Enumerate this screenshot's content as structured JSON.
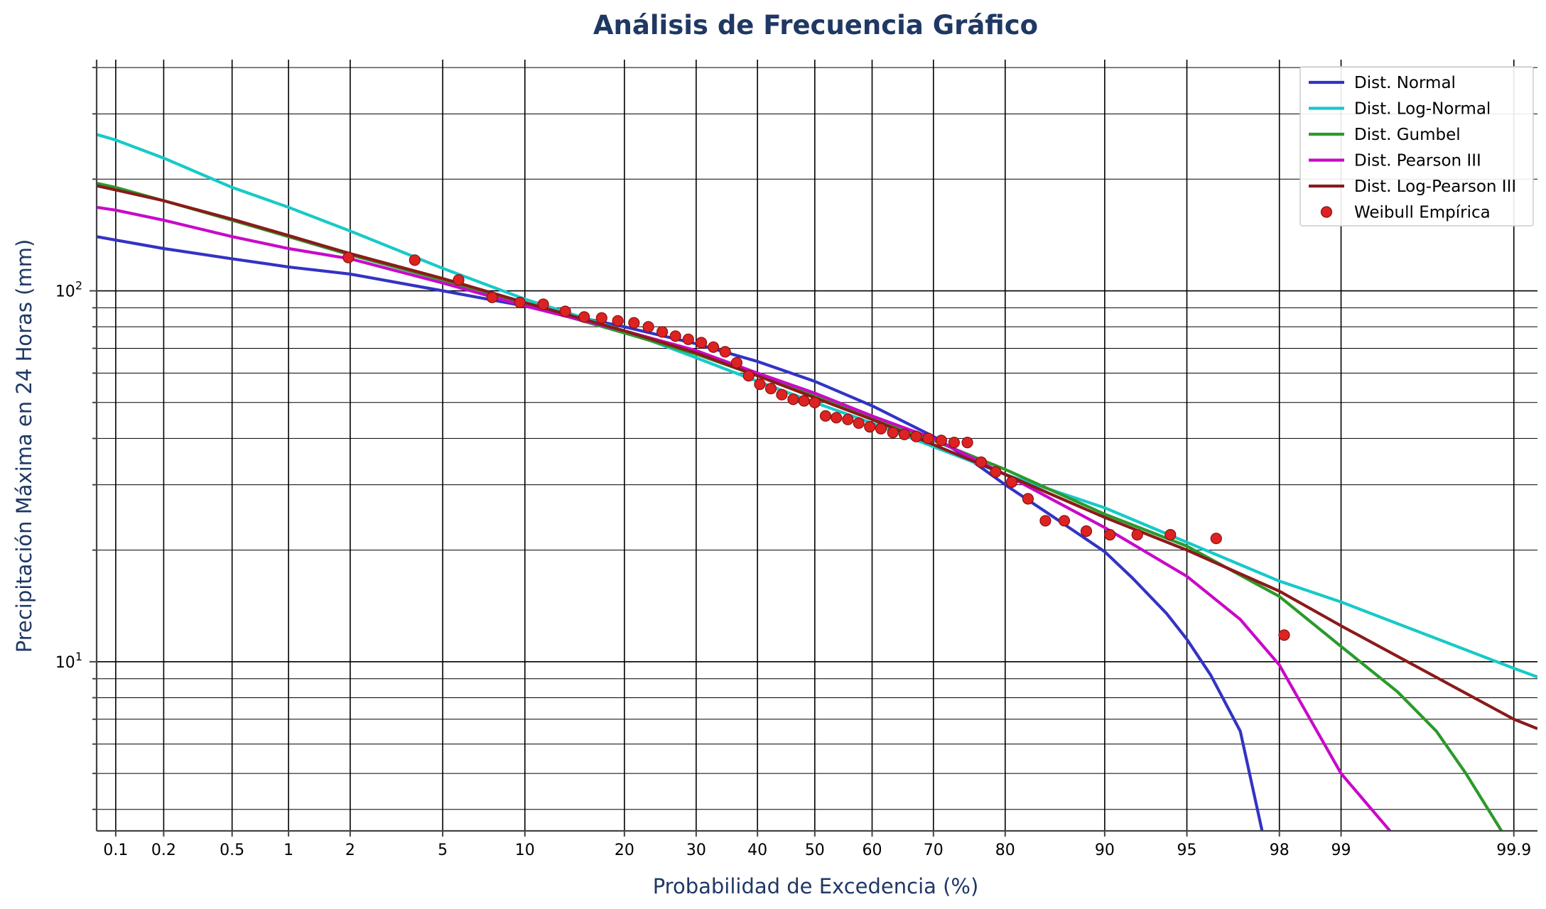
{
  "chart_data": {
    "type": "line",
    "title": "Análisis de Frecuencia Gráfico",
    "xlabel": "Probabilidad de Excedencia (%)",
    "ylabel": "Precipitación Máxima en 24 Horas (mm)",
    "x_scale": "normal-probability",
    "y_scale": "log",
    "ylim": [
      3.5,
      420
    ],
    "xlim_percent": [
      0.075,
      99.93
    ],
    "x_ticks": [
      0.1,
      0.2,
      0.5,
      1,
      2,
      5,
      10,
      20,
      30,
      40,
      50,
      60,
      70,
      80,
      90,
      95,
      98,
      99,
      99.9
    ],
    "x_tick_labels": [
      "0.1",
      "0.2",
      "0.5",
      "1",
      "2",
      "5",
      "10",
      "20",
      "30",
      "40",
      "50",
      "60",
      "70",
      "80",
      "90",
      "95",
      "98",
      "99",
      "99.9"
    ],
    "y_major_ticks": [
      {
        "value": 10,
        "base": "10",
        "exp": "1"
      },
      {
        "value": 100,
        "base": "10",
        "exp": "2"
      }
    ],
    "grid": true,
    "legend_position": "top-right",
    "series": [
      {
        "name": "Dist. Normal",
        "kind": "line",
        "color": "#3333c4",
        "x": [
          0.075,
          0.1,
          0.2,
          0.5,
          1,
          2,
          5,
          10,
          20,
          30,
          40,
          50,
          60,
          70,
          75,
          80,
          85,
          90,
          92,
          94,
          95,
          96,
          97,
          97.6
        ],
        "y": [
          140,
          137,
          130,
          122,
          116,
          111,
          100,
          91,
          80,
          72,
          64.5,
          57,
          49,
          40.5,
          35.5,
          30,
          25,
          19.8,
          16.8,
          13.5,
          11.5,
          9.2,
          6.5,
          3.5
        ]
      },
      {
        "name": "Dist. Log-Normal",
        "kind": "line",
        "color": "#17c9c9",
        "x": [
          0.075,
          0.1,
          0.2,
          0.5,
          1,
          2,
          5,
          10,
          20,
          30,
          40,
          50,
          60,
          70,
          80,
          90,
          95,
          98,
          99,
          99.9,
          99.93
        ],
        "y": [
          264,
          255,
          228,
          190,
          168,
          145,
          115,
          95,
          78,
          66,
          57,
          50,
          44,
          38,
          32,
          26,
          21,
          16.5,
          14.5,
          9.6,
          9.1
        ]
      },
      {
        "name": "Dist. Gumbel",
        "kind": "line",
        "color": "#2a9a2a",
        "x": [
          0.075,
          0.1,
          0.2,
          0.5,
          1,
          2,
          5,
          10,
          20,
          30,
          40,
          50,
          60,
          70,
          80,
          90,
          95,
          98,
          99,
          99.5,
          99.7,
          99.8,
          99.88
        ],
        "y": [
          195,
          190,
          175,
          155,
          140,
          125,
          107,
          92,
          77,
          67.5,
          59,
          52,
          45.5,
          39.5,
          33,
          25,
          20.5,
          15,
          11,
          8.3,
          6.5,
          5,
          3.5
        ]
      },
      {
        "name": "Dist. Pearson III",
        "kind": "line",
        "color": "#c80ac8",
        "x": [
          0.075,
          0.1,
          0.2,
          0.5,
          1,
          2,
          5,
          10,
          20,
          30,
          40,
          50,
          60,
          70,
          80,
          90,
          95,
          97,
          98,
          99,
          99.45
        ],
        "y": [
          168,
          165,
          155,
          140,
          130,
          122,
          105,
          91,
          78,
          69,
          60,
          53,
          46,
          40,
          32,
          23,
          17,
          13,
          9.8,
          5,
          3.5
        ]
      },
      {
        "name": "Dist. Log-Pearson III",
        "kind": "line",
        "color": "#8b1a1a",
        "x": [
          0.075,
          0.1,
          0.2,
          0.5,
          1,
          2,
          5,
          10,
          20,
          30,
          40,
          50,
          60,
          70,
          80,
          90,
          95,
          98,
          99,
          99.9,
          99.93
        ],
        "y": [
          192,
          187,
          175,
          156,
          141,
          126,
          108,
          93,
          78,
          68,
          59,
          51.5,
          45,
          38.5,
          32,
          24.5,
          20,
          15.5,
          12.5,
          7,
          6.6
        ]
      },
      {
        "name": "Weibull Empírica",
        "kind": "scatter",
        "color": "#dd2222",
        "x": [
          1.96,
          3.85,
          5.77,
          7.69,
          9.62,
          11.5,
          13.5,
          15.4,
          17.3,
          19.2,
          21.2,
          23.1,
          25.0,
          26.9,
          28.8,
          30.8,
          32.7,
          34.6,
          36.5,
          38.5,
          40.4,
          42.3,
          44.2,
          46.2,
          48.1,
          50.0,
          51.9,
          53.8,
          55.8,
          57.7,
          59.6,
          61.5,
          63.5,
          65.4,
          67.3,
          69.2,
          71.2,
          73.1,
          75.0,
          76.9,
          78.8,
          80.8,
          82.7,
          84.6,
          86.5,
          88.5,
          90.4,
          92.3,
          94.2,
          96.2,
          98.1
        ],
        "y": [
          123,
          121,
          107,
          96,
          93,
          92,
          88,
          85,
          84.5,
          83,
          82,
          80,
          77.5,
          75.5,
          74,
          72.5,
          70.5,
          68.5,
          64,
          59,
          56,
          54.5,
          52.5,
          51,
          50.5,
          50,
          46,
          45.5,
          45,
          44,
          43,
          42.5,
          41.5,
          41,
          40.5,
          40,
          39.5,
          39,
          39,
          34.5,
          32.5,
          30.5,
          27.5,
          24,
          24,
          22.5,
          22,
          22,
          22,
          21.5,
          11.8
        ]
      }
    ]
  }
}
